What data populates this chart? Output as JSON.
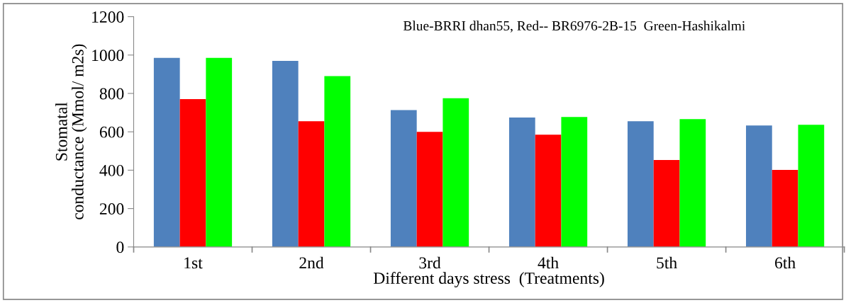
{
  "chart_data": {
    "type": "bar",
    "xlabel": "Different days stress  (Treatments)",
    "ylabel": "Stomatal\nconductance (Mmol/ m2s)",
    "categories": [
      "1st",
      "2nd",
      "3rd",
      "4th",
      "5th",
      "6th"
    ],
    "series": [
      {
        "color": "#4f81bd",
        "values": [
          985,
          970,
          713,
          674,
          655,
          633
        ]
      },
      {
        "color": "#ff0000",
        "values": [
          770,
          655,
          600,
          585,
          453,
          401
        ]
      },
      {
        "color": "#00ff00",
        "values": [
          985,
          890,
          775,
          677,
          666,
          637
        ]
      }
    ],
    "ylim": [
      0,
      1200
    ],
    "yticks": [
      0,
      200,
      400,
      600,
      800,
      1000,
      1200
    ],
    "grid": false,
    "legend": false,
    "annotations": [
      "Blue-BRRI dhan55, Red-- BR6976-2B-15  Green-Hashikalmi"
    ]
  }
}
